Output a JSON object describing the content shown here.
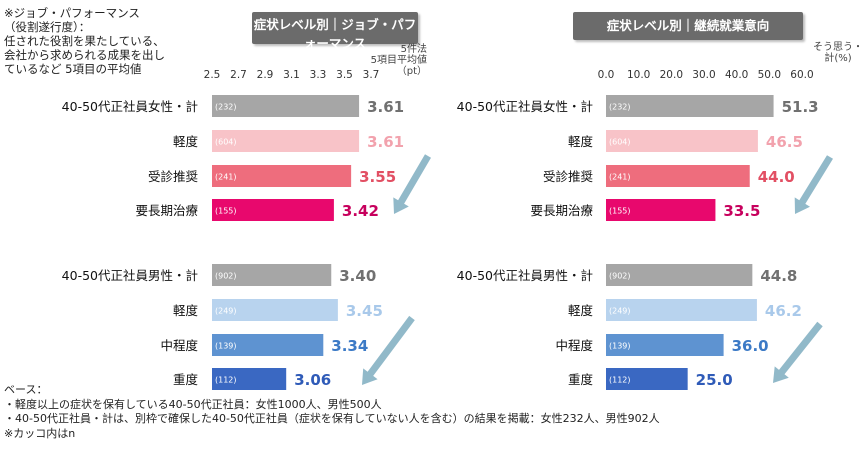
{
  "note": "※ジョブ・パフォーマンス\n（役割遂行度）：\n任された役割を果たしている、\n会社から求められる成果を出し\nているなど 5項目の平均値",
  "footer": "ベース：\n・軽度以上の症状を保有している40-50代正社員：女性1000人、男性500人\n・40-50代正社員・計は、別枠で確保した40-50代正社員（症状を保有していない人を含む）の結果を掲載：女性232人、男性902人\n※カッコ内はn",
  "colors": {
    "gray": "#a6a6a6",
    "pink_light": "#f8c3c8",
    "pink_mid": "#ee6d7d",
    "pink_dark": "#e8086d",
    "blue_light": "#b8d3ee",
    "blue_mid": "#5e93d1",
    "blue_dark": "#3a68c2",
    "arrow": "#91b9c9"
  },
  "chart_data": [
    {
      "type": "bar",
      "title": "症状レベル別｜ジョブ・パフォーマンス",
      "subtitle": "（役割遂行度）",
      "axis_note": "5件法\n5項目平均値\n（pt）",
      "ticks": [
        "2.5",
        "2.7",
        "2.9",
        "3.1",
        "3.3",
        "3.5",
        "3.7"
      ],
      "xlim": [
        2.5,
        3.7
      ],
      "groups": [
        {
          "categories": [
            "40-50代正社員女性・計",
            "軽度",
            "受診推奨",
            "要長期治療"
          ],
          "values": [
            3.61,
            3.61,
            3.55,
            3.42
          ],
          "labels": [
            "3.61",
            "3.61",
            "3.55",
            "3.42"
          ],
          "n": [
            "(232)",
            "(604)",
            "(241)",
            "(155)"
          ],
          "colors": [
            "#a6a6a6",
            "#f8c3c8",
            "#ee6d7d",
            "#e8086d"
          ],
          "label_colors": [
            "#707070",
            "#f2a2ad",
            "#e24f63",
            "#c7005d"
          ]
        },
        {
          "categories": [
            "40-50代正社員男性・計",
            "軽度",
            "中程度",
            "重度"
          ],
          "values": [
            3.4,
            3.45,
            3.34,
            3.06
          ],
          "labels": [
            "3.40",
            "3.45",
            "3.34",
            "3.06"
          ],
          "n": [
            "(902)",
            "(249)",
            "(139)",
            "(112)"
          ],
          "colors": [
            "#a6a6a6",
            "#b8d3ee",
            "#5e93d1",
            "#3a68c2"
          ],
          "label_colors": [
            "#707070",
            "#a9c9ea",
            "#3c7ac6",
            "#2f5bb8"
          ]
        }
      ]
    },
    {
      "type": "bar",
      "title": "症状レベル別｜継続就業意向",
      "subtitle": "",
      "axis_note": "そう思う・\n計(%)",
      "ticks": [
        "0.0",
        "10.0",
        "20.0",
        "30.0",
        "40.0",
        "50.0",
        "60.0"
      ],
      "xlim": [
        0,
        60
      ],
      "groups": [
        {
          "categories": [
            "40-50代正社員女性・計",
            "軽度",
            "受診推奨",
            "要長期治療"
          ],
          "values": [
            51.3,
            46.5,
            44.0,
            33.5
          ],
          "labels": [
            "51.3",
            "46.5",
            "44.0",
            "33.5"
          ],
          "n": [
            "(232)",
            "(604)",
            "(241)",
            "(155)"
          ],
          "colors": [
            "#a6a6a6",
            "#f8c3c8",
            "#ee6d7d",
            "#e8086d"
          ],
          "label_colors": [
            "#707070",
            "#f2a2ad",
            "#e24f63",
            "#c7005d"
          ]
        },
        {
          "categories": [
            "40-50代正社員男性・計",
            "軽度",
            "中程度",
            "重度"
          ],
          "values": [
            44.8,
            46.2,
            36.0,
            25.0
          ],
          "labels": [
            "44.8",
            "46.2",
            "36.0",
            "25.0"
          ],
          "n": [
            "(902)",
            "(249)",
            "(139)",
            "(112)"
          ],
          "colors": [
            "#a6a6a6",
            "#b8d3ee",
            "#5e93d1",
            "#3a68c2"
          ],
          "label_colors": [
            "#707070",
            "#a9c9ea",
            "#3c7ac6",
            "#2f5bb8"
          ]
        }
      ]
    }
  ]
}
